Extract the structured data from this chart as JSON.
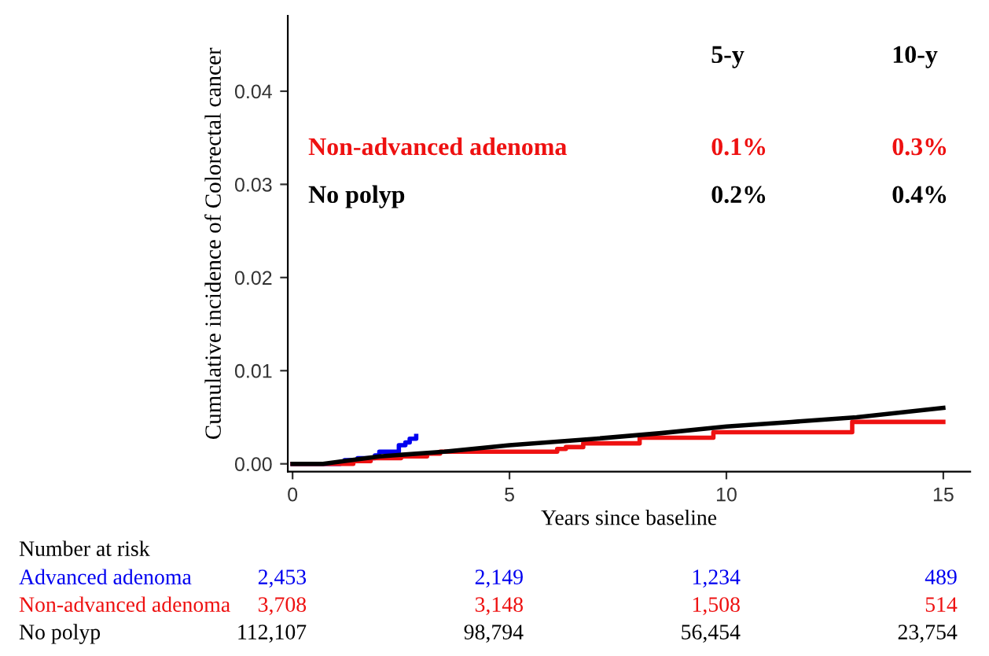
{
  "chart_data": {
    "type": "step",
    "xlabel": "Years since baseline",
    "ylabel": "Cumulative incidence of Colorectal cancer",
    "xlim": [
      -0.11,
      15.62
    ],
    "ylim": [
      -0.00084,
      0.0481
    ],
    "xticks": [
      0,
      5,
      10,
      15
    ],
    "yticks": [
      {
        "value": 0,
        "label": "0.00"
      },
      {
        "value": 0.01,
        "label": "0.01"
      },
      {
        "value": 0.02,
        "label": "0.02"
      },
      {
        "value": 0.03,
        "label": "0.03"
      },
      {
        "value": 0.04,
        "label": "0.04"
      }
    ],
    "grid": false,
    "legend": false,
    "series": [
      {
        "name": "Advanced adenoma",
        "color": "#0000f0",
        "x": [
          0,
          1.1,
          1.2,
          1.5,
          1.9,
          2.0,
          2.45,
          2.6,
          2.7,
          2.85
        ],
        "values": [
          0,
          0.0002,
          0.0004,
          0.0006,
          0.0009,
          0.0013,
          0.002,
          0.0023,
          0.0027,
          0.003
        ]
      },
      {
        "name": "Non-advanced adenoma",
        "color": "#ee1111",
        "x": [
          0,
          1.4,
          1.8,
          2.5,
          3.1,
          3.4,
          6.1,
          6.3,
          6.7,
          8.0,
          9.7,
          12.9,
          15
        ],
        "values": [
          0,
          0.0003,
          0.0006,
          0.0008,
          0.0011,
          0.0013,
          0.0016,
          0.0018,
          0.0022,
          0.0028,
          0.0034,
          0.0045,
          0.0045
        ]
      },
      {
        "name": "No polyp",
        "color": "#000000",
        "type": "line",
        "x": [
          0,
          0.7,
          2,
          3.5,
          5,
          7,
          8.5,
          10,
          11.5,
          13,
          15
        ],
        "values": [
          0,
          0,
          0.0008,
          0.0013,
          0.002,
          0.0027,
          0.0033,
          0.004,
          0.0045,
          0.005,
          0.006
        ]
      }
    ],
    "annotations": [
      "5-y",
      "10-y",
      "0.1%",
      "0.3%",
      "0.2%",
      "0.4%",
      "Number at risk",
      "2,453",
      "2,149",
      "1,234",
      "489",
      "3,708",
      "3,148",
      "1,508",
      "514",
      "112,107",
      "98,794",
      "56,454",
      "23,754"
    ]
  }
}
